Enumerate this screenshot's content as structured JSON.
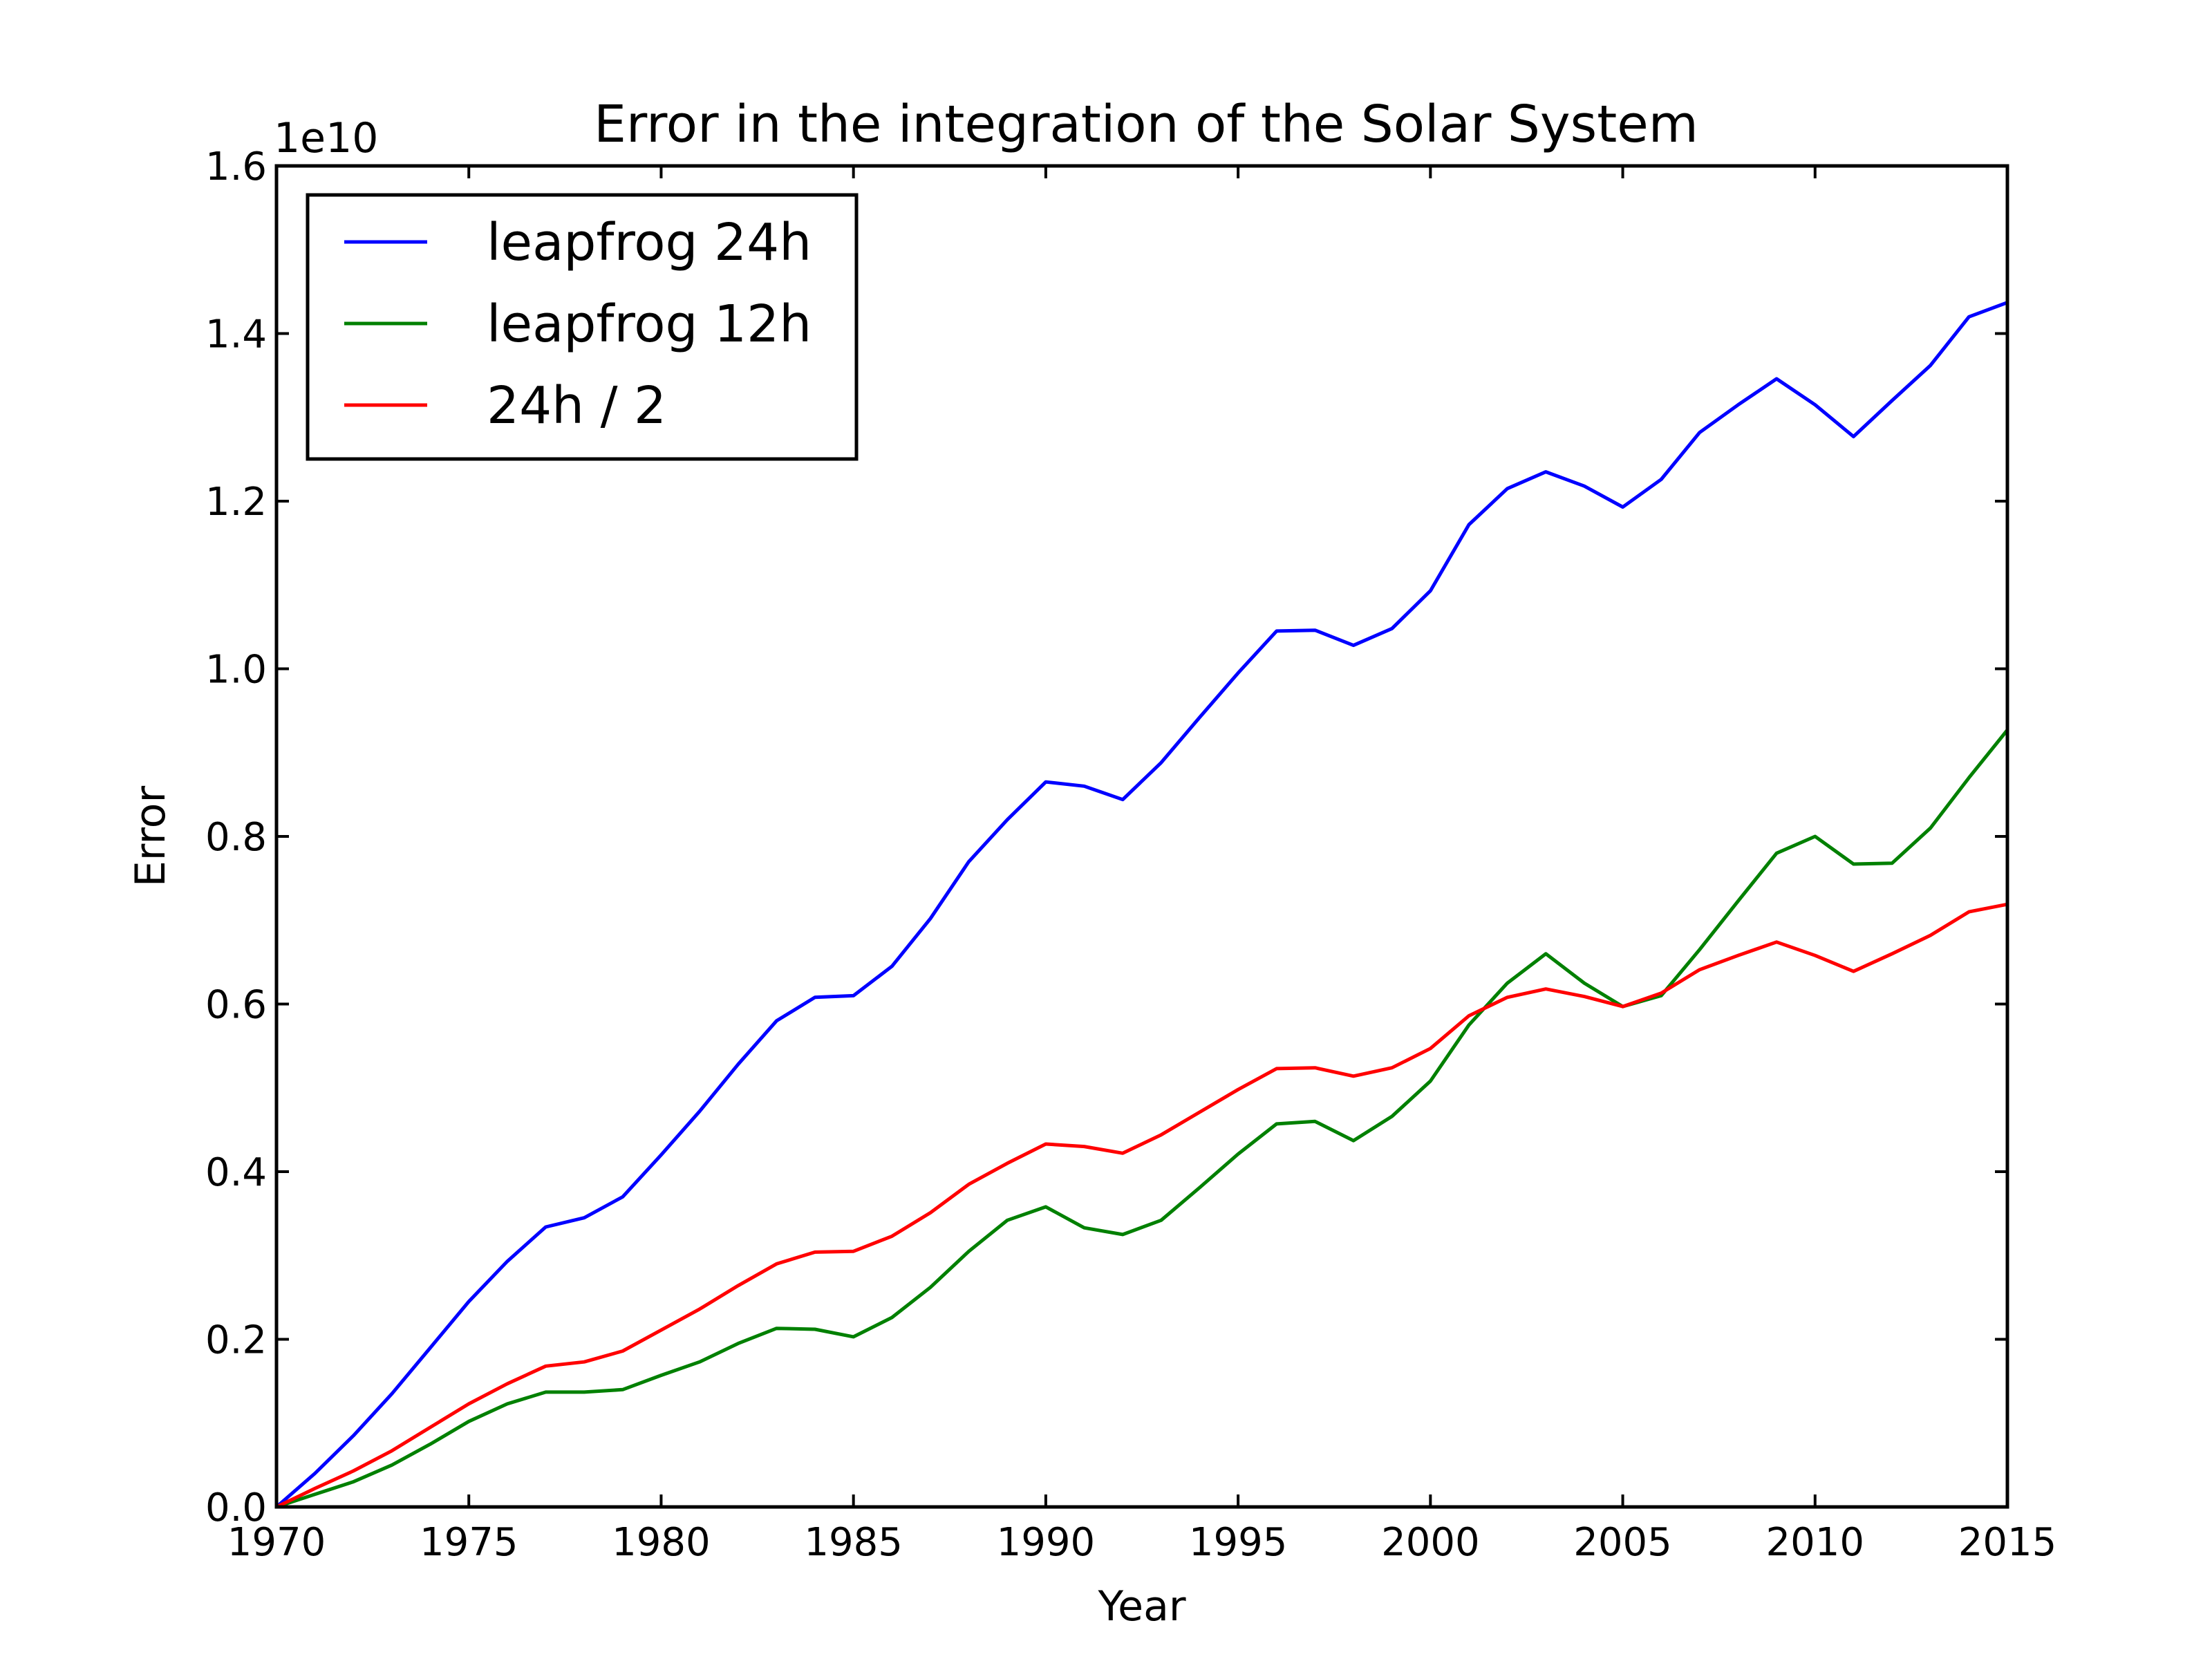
{
  "chart_data": {
    "type": "line",
    "title": "Error in the integration of the Solar System",
    "xlabel": "Year",
    "ylabel": "Error",
    "y_offset_label": "1e10",
    "xlim": [
      1970,
      2015
    ],
    "ylim": [
      0.0,
      1.6
    ],
    "xticks": [
      1970,
      1975,
      1980,
      1985,
      1990,
      1995,
      2000,
      2005,
      2010,
      2015
    ],
    "xtick_labels": [
      "1970",
      "1975",
      "1980",
      "1985",
      "1990",
      "1995",
      "2000",
      "2005",
      "2010",
      "2015"
    ],
    "yticks": [
      0.0,
      0.2,
      0.4,
      0.6,
      0.8,
      1.0,
      1.2,
      1.4,
      1.6
    ],
    "ytick_labels": [
      "0.0",
      "0.2",
      "0.4",
      "0.6",
      "0.8",
      "1.0",
      "1.2",
      "1.4",
      "1.6"
    ],
    "grid": false,
    "legend_position": "upper-left",
    "x": [
      1970,
      1971,
      1972,
      1973,
      1974,
      1975,
      1976,
      1977,
      1978,
      1979,
      1980,
      1981,
      1982,
      1983,
      1984,
      1985,
      1986,
      1987,
      1988,
      1989,
      1990,
      1991,
      1992,
      1993,
      1994,
      1995,
      1996,
      1997,
      1998,
      1999,
      2000,
      2001,
      2002,
      2003,
      2004,
      2005,
      2006,
      2007,
      2008,
      2009,
      2010,
      2011,
      2012,
      2013,
      2014,
      2015
    ],
    "series": [
      {
        "name": "leapfrog 24h",
        "color": "#0000ff",
        "values": [
          0.0,
          0.04,
          0.085,
          0.135,
          0.19,
          0.245,
          0.293,
          0.334,
          0.345,
          0.37,
          0.42,
          0.472,
          0.528,
          0.58,
          0.608,
          0.61,
          0.645,
          0.702,
          0.77,
          0.82,
          0.865,
          0.86,
          0.844,
          0.888,
          0.942,
          0.995,
          1.045,
          1.046,
          1.028,
          1.048,
          1.093,
          1.172,
          1.215,
          1.235,
          1.218,
          1.193,
          1.226,
          1.282,
          1.315,
          1.346,
          1.315,
          1.277,
          1.32,
          1.362,
          1.42,
          1.437
        ]
      },
      {
        "name": "leapfrog 12h",
        "color": "#008000",
        "values": [
          0.0,
          0.015,
          0.03,
          0.05,
          0.075,
          0.102,
          0.123,
          0.137,
          0.137,
          0.14,
          0.157,
          0.173,
          0.195,
          0.213,
          0.212,
          0.203,
          0.226,
          0.262,
          0.305,
          0.342,
          0.358,
          0.333,
          0.325,
          0.342,
          0.381,
          0.421,
          0.457,
          0.46,
          0.437,
          0.466,
          0.508,
          0.575,
          0.625,
          0.66,
          0.625,
          0.597,
          0.61,
          0.665,
          0.723,
          0.78,
          0.8,
          0.767,
          0.768,
          0.81,
          0.87,
          0.927
        ]
      },
      {
        "name": "24h / 2",
        "color": "#ff0000",
        "values": [
          0.0,
          0.022,
          0.043,
          0.067,
          0.095,
          0.123,
          0.147,
          0.168,
          0.173,
          0.186,
          0.211,
          0.236,
          0.264,
          0.29,
          0.304,
          0.305,
          0.323,
          0.351,
          0.385,
          0.41,
          0.433,
          0.43,
          0.422,
          0.444,
          0.471,
          0.498,
          0.523,
          0.524,
          0.514,
          0.524,
          0.547,
          0.586,
          0.608,
          0.618,
          0.609,
          0.597,
          0.613,
          0.641,
          0.658,
          0.674,
          0.658,
          0.639,
          0.66,
          0.682,
          0.71,
          0.719
        ]
      }
    ]
  }
}
